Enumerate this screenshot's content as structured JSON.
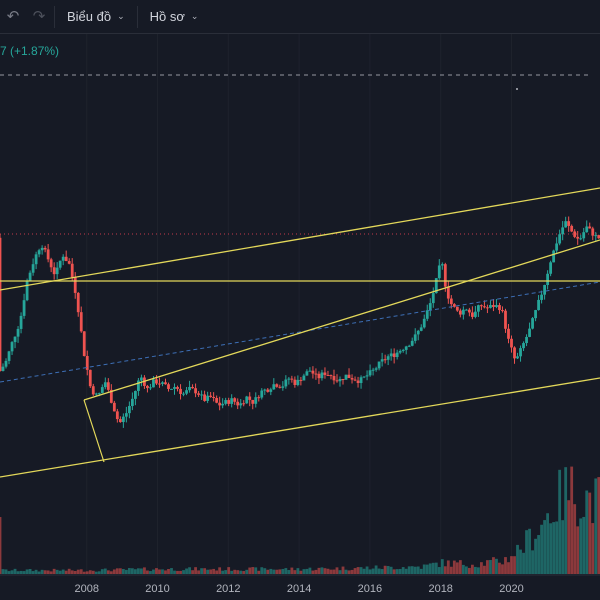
{
  "toolbar": {
    "undo_icon": "undo-icon",
    "redo_icon": "redo-icon",
    "chart_menu_label": "Biểu đồ",
    "profile_menu_label": "Hồ sơ"
  },
  "legend": {
    "change_text": "7 (+1.87%)"
  },
  "colors": {
    "background": "#161a25",
    "up": "#26a69a",
    "down": "#ef5350",
    "trendline": "#e3d85a",
    "regression": "#3d6fb6",
    "price_line": "#c23a4a",
    "dashed_level": "#9598a1"
  },
  "chart_data": {
    "type": "candlestick",
    "x_ticks": [
      "2008",
      "2010",
      "2012",
      "2014",
      "2016",
      "2018",
      "2020"
    ],
    "x_range": [
      2005.55,
      2022.5
    ],
    "y_range": [
      0,
      100
    ],
    "price_path": [
      [
        2005.6,
        36
      ],
      [
        2005.8,
        40
      ],
      [
        2006.0,
        48
      ],
      [
        2006.2,
        55
      ],
      [
        2006.4,
        70
      ],
      [
        2006.6,
        78
      ],
      [
        2006.8,
        84
      ],
      [
        2007.0,
        78
      ],
      [
        2007.2,
        72
      ],
      [
        2007.4,
        80
      ],
      [
        2007.6,
        76
      ],
      [
        2007.8,
        64
      ],
      [
        2008.0,
        44
      ],
      [
        2008.2,
        30
      ],
      [
        2008.4,
        27
      ],
      [
        2008.6,
        33
      ],
      [
        2008.8,
        25
      ],
      [
        2009.0,
        17
      ],
      [
        2009.2,
        21
      ],
      [
        2009.4,
        27
      ],
      [
        2009.6,
        35
      ],
      [
        2009.8,
        30
      ],
      [
        2010.0,
        33
      ],
      [
        2010.2,
        32
      ],
      [
        2010.4,
        30
      ],
      [
        2010.6,
        31
      ],
      [
        2010.8,
        28
      ],
      [
        2011.0,
        30
      ],
      [
        2011.2,
        29
      ],
      [
        2011.4,
        26
      ],
      [
        2011.6,
        27
      ],
      [
        2011.8,
        24
      ],
      [
        2012.0,
        25
      ],
      [
        2012.2,
        26
      ],
      [
        2012.4,
        24
      ],
      [
        2012.6,
        27
      ],
      [
        2012.8,
        25
      ],
      [
        2013.0,
        29
      ],
      [
        2013.2,
        30
      ],
      [
        2013.4,
        32
      ],
      [
        2013.6,
        31
      ],
      [
        2013.8,
        34
      ],
      [
        2014.0,
        32
      ],
      [
        2014.2,
        35
      ],
      [
        2014.4,
        37
      ],
      [
        2014.6,
        34
      ],
      [
        2014.8,
        36
      ],
      [
        2015.0,
        35
      ],
      [
        2015.2,
        33
      ],
      [
        2015.4,
        35
      ],
      [
        2015.6,
        34
      ],
      [
        2015.8,
        33
      ],
      [
        2016.0,
        35
      ],
      [
        2016.2,
        37
      ],
      [
        2016.4,
        40
      ],
      [
        2016.6,
        42
      ],
      [
        2016.8,
        43
      ],
      [
        2017.0,
        45
      ],
      [
        2017.2,
        47
      ],
      [
        2017.4,
        50
      ],
      [
        2017.6,
        55
      ],
      [
        2017.8,
        62
      ],
      [
        2018.0,
        72
      ],
      [
        2018.1,
        78
      ],
      [
        2018.25,
        66
      ],
      [
        2018.4,
        61
      ],
      [
        2018.6,
        58
      ],
      [
        2018.8,
        60
      ],
      [
        2019.0,
        57
      ],
      [
        2019.2,
        61
      ],
      [
        2019.4,
        60
      ],
      [
        2019.6,
        61
      ],
      [
        2019.8,
        60
      ],
      [
        2020.0,
        48
      ],
      [
        2020.2,
        40
      ],
      [
        2020.4,
        46
      ],
      [
        2020.6,
        52
      ],
      [
        2020.8,
        60
      ],
      [
        2021.0,
        68
      ],
      [
        2021.2,
        78
      ],
      [
        2021.4,
        86
      ],
      [
        2021.6,
        92
      ],
      [
        2021.8,
        88
      ],
      [
        2022.0,
        85
      ],
      [
        2022.2,
        90
      ],
      [
        2022.5,
        86
      ]
    ],
    "volume_path": [
      [
        2005.6,
        3
      ],
      [
        2008.0,
        3
      ],
      [
        2010.0,
        4
      ],
      [
        2012.0,
        4
      ],
      [
        2014.0,
        4
      ],
      [
        2016.0,
        5
      ],
      [
        2017.5,
        6
      ],
      [
        2018.0,
        9
      ],
      [
        2019.0,
        8
      ],
      [
        2019.8,
        11
      ],
      [
        2020.3,
        22
      ],
      [
        2020.8,
        38
      ],
      [
        2021.2,
        55
      ],
      [
        2021.6,
        68
      ],
      [
        2022.0,
        62
      ],
      [
        2022.5,
        58
      ]
    ]
  }
}
